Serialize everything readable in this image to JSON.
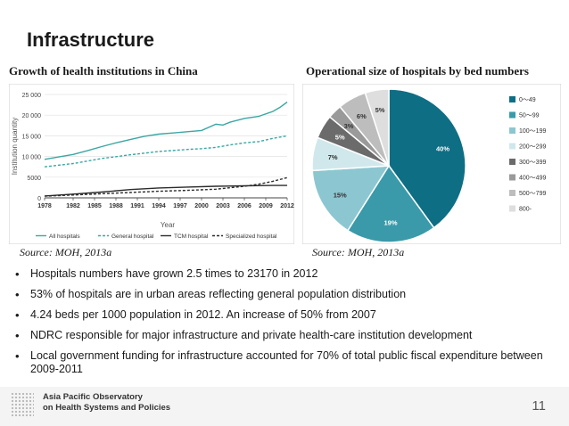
{
  "slide": {
    "title": "Infrastructure",
    "page_number": "11"
  },
  "left_panel": {
    "heading": "Growth of health institutions in China",
    "source": "Source: MOH, 2013a"
  },
  "right_panel": {
    "heading": "Operational size of hospitals by bed numbers",
    "source": "Source: MOH, 2013a"
  },
  "bullets": [
    "Hospitals numbers have grown 2.5 times to 23170 in 2012",
    "53% of hospitals are in urban areas reflecting general population distribution",
    "4.24 beds per 1000 population in 2012. An increase of 50% from 2007",
    "NDRC responsible for major infrastructure and private health-care institution development",
    "Local government funding for infrastructure accounted for 70% of total public fiscal expenditure between 2009-2011"
  ],
  "footer": {
    "org_line1": "Asia Pacific Observatory",
    "org_line2": "on Health Systems and Policies",
    "logo_icon": "dot-grid-logo-icon"
  },
  "chart_data": [
    {
      "type": "line",
      "title": "",
      "xlabel": "Year",
      "ylabel": "Institution quantity",
      "xlim": [
        1978,
        2012
      ],
      "ylim": [
        0,
        25000
      ],
      "x_ticks": [
        "1978",
        "1982",
        "1985",
        "1988",
        "1991",
        "1994",
        "1997",
        "2000",
        "2003",
        "2006",
        "2009",
        "2012"
      ],
      "y_ticks": [
        "0",
        "5000",
        "10 000",
        "15 000",
        "20 000",
        "25 000"
      ],
      "grid": true,
      "legend_position": "bottom",
      "series": [
        {
          "name": "All hospitals",
          "style": "solid",
          "color": "#3aa7a3",
          "x": [
            1978,
            1980,
            1982,
            1984,
            1986,
            1988,
            1990,
            1992,
            1994,
            1996,
            1998,
            2000,
            2002,
            2003,
            2004,
            2006,
            2008,
            2010,
            2011,
            2012
          ],
          "y": [
            9300,
            9900,
            10500,
            11400,
            12400,
            13300,
            14100,
            14900,
            15400,
            15700,
            16000,
            16300,
            17800,
            17600,
            18300,
            19200,
            19700,
            20900,
            21900,
            23170
          ]
        },
        {
          "name": "General hospital",
          "style": "dashed",
          "color": "#3aa7a3",
          "x": [
            1978,
            1982,
            1986,
            1990,
            1994,
            1998,
            2000,
            2002,
            2004,
            2006,
            2008,
            2010,
            2012
          ],
          "y": [
            7500,
            8300,
            9500,
            10400,
            11200,
            11700,
            11900,
            12200,
            12800,
            13300,
            13600,
            14400,
            15000
          ]
        },
        {
          "name": "TCM hospital",
          "style": "solid",
          "color": "#2b2b2b",
          "x": [
            1978,
            1982,
            1986,
            1990,
            1994,
            1998,
            2002,
            2006,
            2010,
            2012
          ],
          "y": [
            450,
            900,
            1400,
            2000,
            2400,
            2600,
            2800,
            2900,
            3000,
            3000
          ]
        },
        {
          "name": "Specialized hospital",
          "style": "dashed",
          "color": "#2b2b2b",
          "x": [
            1978,
            1982,
            1986,
            1990,
            1994,
            1998,
            2002,
            2006,
            2008,
            2010,
            2012
          ],
          "y": [
            400,
            700,
            1000,
            1300,
            1600,
            1800,
            2100,
            2800,
            3300,
            4000,
            4900
          ]
        }
      ]
    },
    {
      "type": "pie",
      "title": "",
      "legend_position": "right",
      "slices": [
        {
          "label": "0～49",
          "value": 40,
          "value_label": "40%",
          "color": "#0e6e84"
        },
        {
          "label": "50～99",
          "value": 19,
          "value_label": "19%",
          "color": "#3a9aaa"
        },
        {
          "label": "100～199",
          "value": 15,
          "value_label": "15%",
          "color": "#8cc7d1"
        },
        {
          "label": "200～299",
          "value": 7,
          "value_label": "7%",
          "color": "#d0e8ec"
        },
        {
          "label": "300～399",
          "value": 5,
          "value_label": "5%",
          "color": "#6b6b6b"
        },
        {
          "label": "400～499",
          "value": 3,
          "value_label": "3%",
          "color": "#9a9a9a"
        },
        {
          "label": "500～799",
          "value": 6,
          "value_label": "6%",
          "color": "#bdbdbd"
        },
        {
          "label": "800-",
          "value": 5,
          "value_label": "5%",
          "color": "#dedede"
        }
      ]
    }
  ]
}
